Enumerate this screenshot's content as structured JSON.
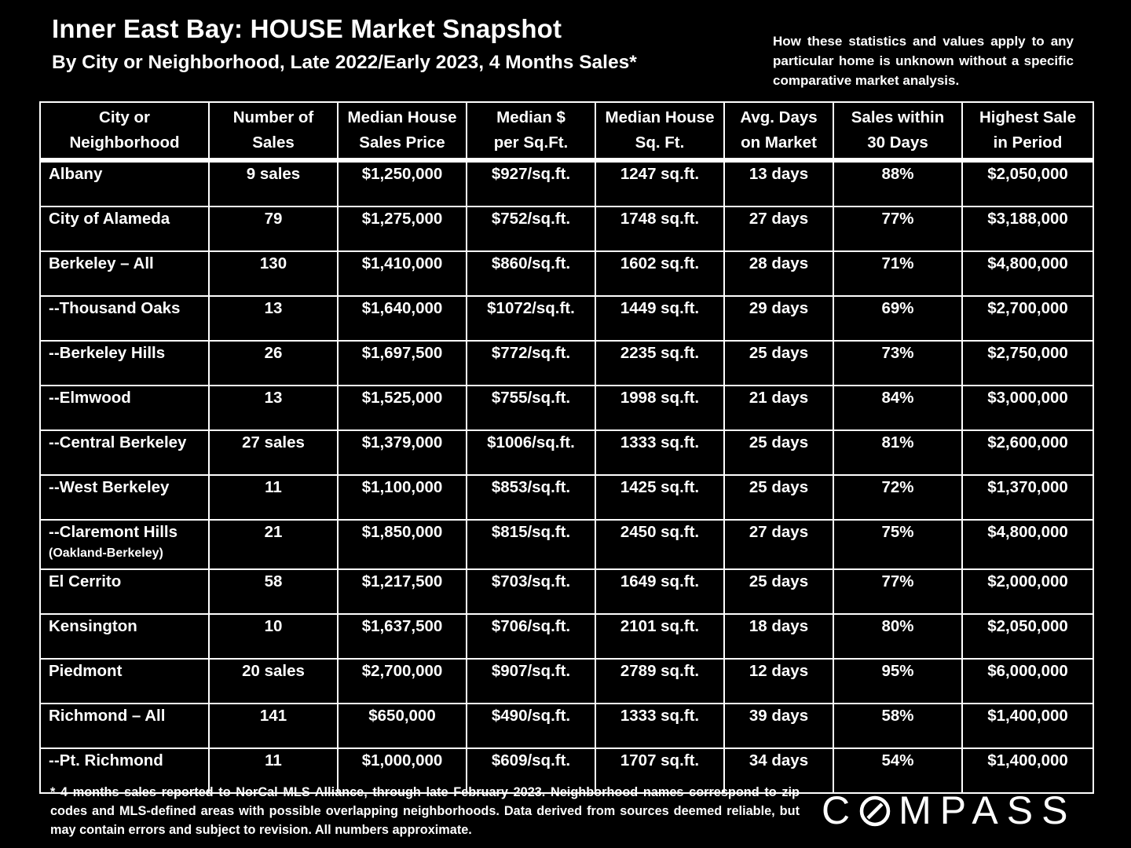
{
  "header": {
    "title": "Inner East Bay: HOUSE Market Snapshot",
    "subtitle": "By City or Neighborhood, Late 2022/Early 2023, 4 Months Sales*",
    "disclaimer": "How these statistics and values apply to any particular home is unknown without a specific comparative market analysis."
  },
  "table": {
    "columns": [
      {
        "line1": "City or",
        "line2": "Neighborhood"
      },
      {
        "line1": "Number of",
        "line2": "Sales"
      },
      {
        "line1": "Median House",
        "line2": "Sales Price"
      },
      {
        "line1": "Median $",
        "line2": "per Sq.Ft."
      },
      {
        "line1": "Median House",
        "line2": "Sq. Ft."
      },
      {
        "line1": "Avg. Days",
        "line2": "on Market"
      },
      {
        "line1": "Sales within",
        "line2": "30 Days"
      },
      {
        "line1": "Highest Sale",
        "line2": "in Period"
      }
    ],
    "rows": [
      {
        "name": "Albany",
        "note": "",
        "sales": "9 sales",
        "price": "$1,250,000",
        "ppsf": "$927/sq.ft.",
        "sqft": "1247 sq.ft.",
        "dom": "13 days",
        "within30": "88%",
        "highest": "$2,050,000"
      },
      {
        "name": "City of Alameda",
        "note": "",
        "sales": "79",
        "price": "$1,275,000",
        "ppsf": "$752/sq.ft.",
        "sqft": "1748 sq.ft.",
        "dom": "27 days",
        "within30": "77%",
        "highest": "$3,188,000"
      },
      {
        "name": "Berkeley – All",
        "note": "",
        "sales": "130",
        "price": "$1,410,000",
        "ppsf": "$860/sq.ft.",
        "sqft": "1602 sq.ft.",
        "dom": "28 days",
        "within30": "71%",
        "highest": "$4,800,000"
      },
      {
        "name": "--Thousand Oaks",
        "note": "",
        "sales": "13",
        "price": "$1,640,000",
        "ppsf": "$1072/sq.ft.",
        "sqft": "1449 sq.ft.",
        "dom": "29 days",
        "within30": "69%",
        "highest": "$2,700,000"
      },
      {
        "name": "--Berkeley Hills",
        "note": "",
        "sales": "26",
        "price": "$1,697,500",
        "ppsf": "$772/sq.ft.",
        "sqft": "2235 sq.ft.",
        "dom": "25 days",
        "within30": "73%",
        "highest": "$2,750,000"
      },
      {
        "name": "--Elmwood",
        "note": "",
        "sales": "13",
        "price": "$1,525,000",
        "ppsf": "$755/sq.ft.",
        "sqft": "1998 sq.ft.",
        "dom": "21 days",
        "within30": "84%",
        "highest": "$3,000,000"
      },
      {
        "name": "--Central Berkeley",
        "note": "",
        "sales": "27 sales",
        "price": "$1,379,000",
        "ppsf": "$1006/sq.ft.",
        "sqft": "1333 sq.ft.",
        "dom": "25 days",
        "within30": "81%",
        "highest": "$2,600,000"
      },
      {
        "name": "--West Berkeley",
        "note": "",
        "sales": "11",
        "price": "$1,100,000",
        "ppsf": "$853/sq.ft.",
        "sqft": "1425 sq.ft.",
        "dom": "25 days",
        "within30": "72%",
        "highest": "$1,370,000"
      },
      {
        "name": "--Claremont Hills",
        "note": "(Oakland-Berkeley)",
        "sales": "21",
        "price": "$1,850,000",
        "ppsf": "$815/sq.ft.",
        "sqft": "2450 sq.ft.",
        "dom": "27 days",
        "within30": "75%",
        "highest": "$4,800,000"
      },
      {
        "name": "El Cerrito",
        "note": "",
        "sales": "58",
        "price": "$1,217,500",
        "ppsf": "$703/sq.ft.",
        "sqft": "1649 sq.ft.",
        "dom": "25 days",
        "within30": "77%",
        "highest": "$2,000,000"
      },
      {
        "name": "Kensington",
        "note": "",
        "sales": "10",
        "price": "$1,637,500",
        "ppsf": "$706/sq.ft.",
        "sqft": "2101 sq.ft.",
        "dom": "18 days",
        "within30": "80%",
        "highest": "$2,050,000"
      },
      {
        "name": "Piedmont",
        "note": "",
        "sales": "20 sales",
        "price": "$2,700,000",
        "ppsf": "$907/sq.ft.",
        "sqft": "2789 sq.ft.",
        "dom": "12 days",
        "within30": "95%",
        "highest": "$6,000,000"
      },
      {
        "name": "Richmond – All",
        "note": "",
        "sales": "141",
        "price": "$650,000",
        "ppsf": "$490/sq.ft.",
        "sqft": "1333 sq.ft.",
        "dom": "39 days",
        "within30": "58%",
        "highest": "$1,400,000"
      },
      {
        "name": "--Pt. Richmond",
        "note": "",
        "sales": "11",
        "price": "$1,000,000",
        "ppsf": "$609/sq.ft.",
        "sqft": "1707 sq.ft.",
        "dom": "34 days",
        "within30": "54%",
        "highest": "$1,400,000"
      }
    ]
  },
  "footer": {
    "footnote": "* 4 months sales reported to NorCal MLS Alliance, through late February 2023. Neighborhood names correspond to zip codes and MLS-defined areas with possible overlapping neighborhoods. Data derived from sources deemed reliable, but may contain errors and subject to revision. All numbers approximate.",
    "logo_before": "C",
    "logo_after": "MPASS",
    "logo_icon": "compass-o-icon"
  },
  "colors": {
    "background": "#000000",
    "text": "#ffffff",
    "grid": "#ffffff"
  }
}
